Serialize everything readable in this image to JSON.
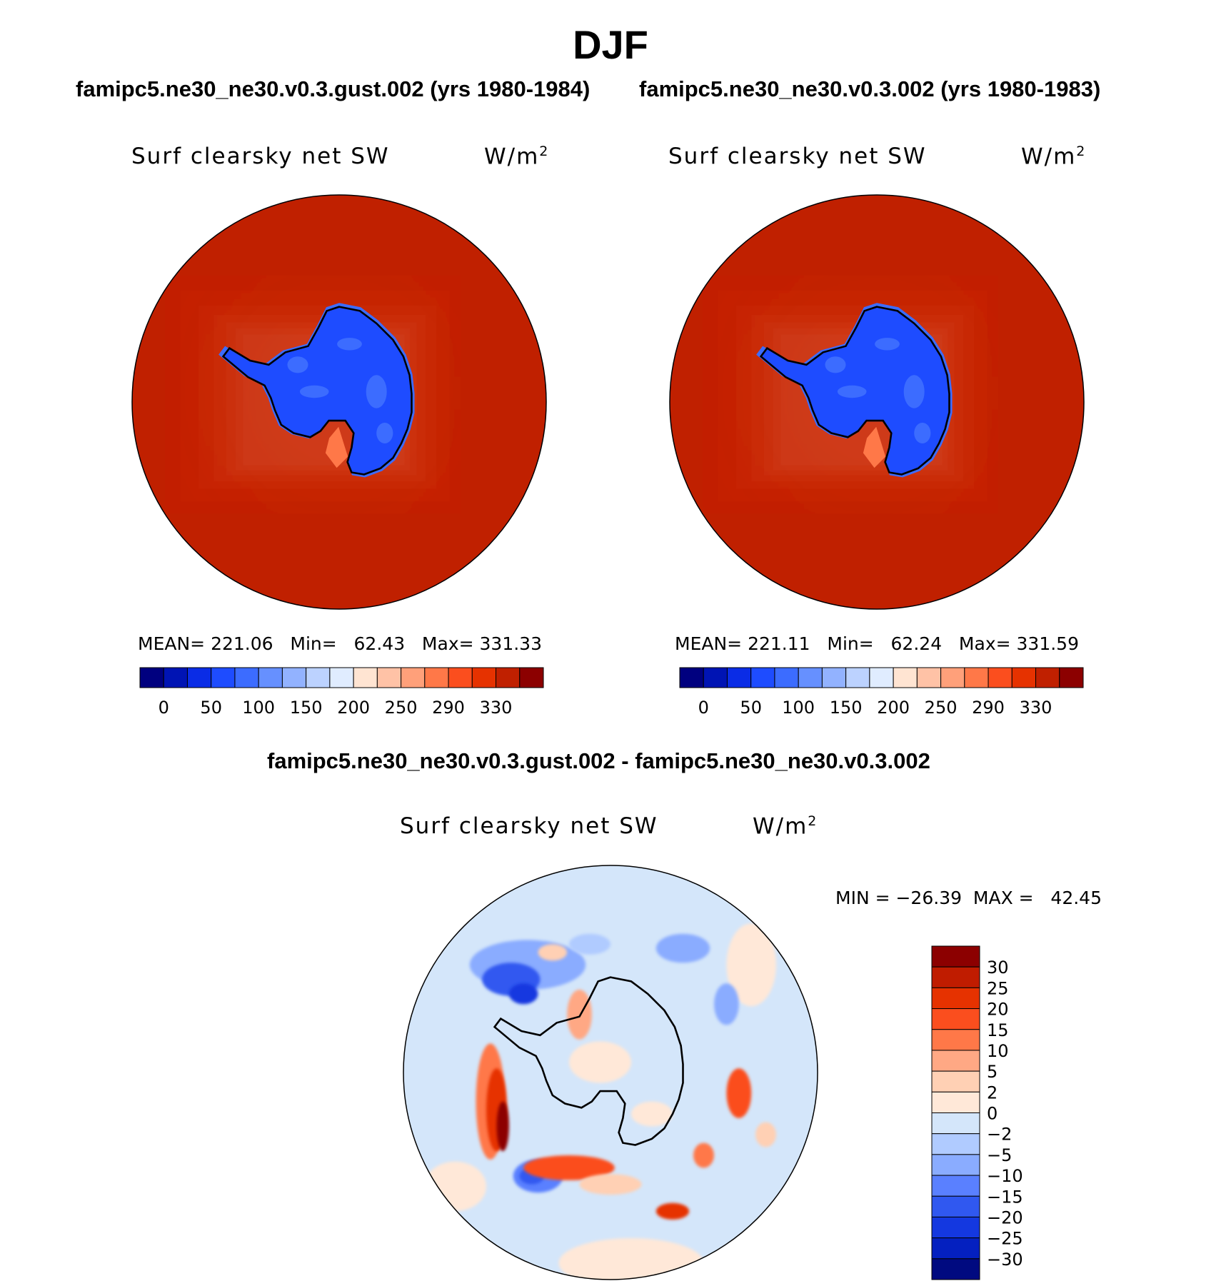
{
  "figure": {
    "season": "DJF",
    "test_case": "famipc5.ne30_ne30.v0.3.gust.002 (yrs 1980-1984)",
    "ctrl_case": "famipc5.ne30_ne30.v0.3.002 (yrs 1980-1983)",
    "diff_title": "famipc5.ne30_ne30.v0.3.gust.002 - famipc5.ne30_ne30.v0.3.002"
  },
  "panels": [
    {
      "variable": "Surf clearsky net SW",
      "units": "W/m",
      "units_sup": "2",
      "stats": "MEAN= 221.06   Min=   62.43   Max= 331.33",
      "colorbar_ticks": [
        "0",
        "50",
        "100",
        "150",
        "200",
        "250",
        "290",
        "330"
      ]
    },
    {
      "variable": "Surf clearsky net SW",
      "units": "W/m",
      "units_sup": "2",
      "stats": "MEAN= 221.11   Min=   62.24   Max= 331.59",
      "colorbar_ticks": [
        "0",
        "50",
        "100",
        "150",
        "200",
        "250",
        "290",
        "330"
      ]
    },
    {
      "variable": "Surf clearsky net SW",
      "units": "W/m",
      "units_sup": "2",
      "stats": "MIN = −26.39  MAX =   42.45",
      "colorbar_ticks": [
        "30",
        "25",
        "20",
        "15",
        "10",
        "5",
        "2",
        "0",
        "−2",
        "−5",
        "−10",
        "−15",
        "−20",
        "−25",
        "−30"
      ]
    }
  ],
  "colors": {
    "field_scale": [
      "#00007f",
      "#0014b4",
      "#0a2ce6",
      "#1e4cff",
      "#3c6cff",
      "#6690ff",
      "#92b2ff",
      "#bcd2ff",
      "#e0ecff",
      "#ffe4d2",
      "#ffc2a6",
      "#ffa07a",
      "#ff7848",
      "#fb4e1e",
      "#e63200",
      "#c02000",
      "#8c0000"
    ],
    "diff_scale": [
      "#8c0000",
      "#c01c00",
      "#e63200",
      "#fb4e1e",
      "#ff7848",
      "#ffa884",
      "#ffd0b4",
      "#ffe8d8",
      "#d4e6fa",
      "#b0cbff",
      "#8aacff",
      "#5a80ff",
      "#3058f0",
      "#1438e0",
      "#0420c0",
      "#000a80"
    ],
    "coast": "#000000"
  }
}
